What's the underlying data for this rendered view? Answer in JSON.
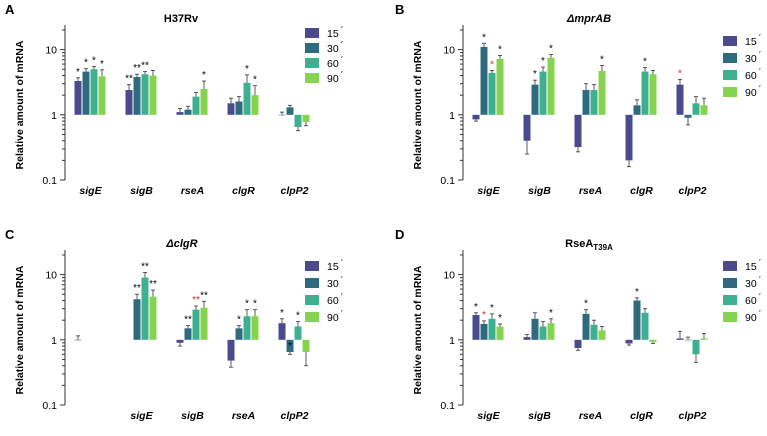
{
  "colors": {
    "15": "#4a4a8c",
    "30": "#2e6b7f",
    "60": "#3fb08f",
    "90": "#86d34f",
    "axis": "#333333",
    "red_star": "#d62728"
  },
  "chart_data": [
    {
      "type": "bar",
      "panel": "A",
      "title": "H37Rv",
      "ylabel": "Relative amount of mRNA",
      "yscale": "log",
      "ylim": [
        0.1,
        20
      ],
      "yticks": [
        "10",
        "1",
        "0.1"
      ],
      "categories": [
        "sigE",
        "sigB",
        "rseA",
        "clgR",
        "clpP2"
      ],
      "legend": [
        "15",
        "30",
        "60",
        "90"
      ],
      "series": [
        {
          "name": "15",
          "values": [
            3.3,
            2.4,
            1.1,
            1.5,
            1.0
          ],
          "errors": [
            0.4,
            0.5,
            0.15,
            0.3,
            0.1
          ],
          "annotations": [
            "*",
            "**",
            "",
            "",
            ""
          ]
        },
        {
          "name": "30",
          "values": [
            4.6,
            3.8,
            1.2,
            1.6,
            1.3
          ],
          "errors": [
            0.5,
            0.4,
            0.15,
            0.3,
            0.1
          ],
          "annotations": [
            "*",
            "**",
            "",
            "",
            ""
          ]
        },
        {
          "name": "60",
          "values": [
            5.0,
            4.2,
            1.9,
            3.1,
            0.65
          ],
          "errors": [
            0.5,
            0.4,
            0.3,
            1.0,
            0.08
          ],
          "annotations": [
            "*",
            "**",
            "",
            "*",
            ""
          ]
        },
        {
          "name": "90",
          "values": [
            3.9,
            4.0,
            2.5,
            2.0,
            0.78
          ],
          "errors": [
            1.0,
            0.8,
            0.8,
            0.8,
            0.1
          ],
          "annotations": [
            "*",
            "",
            "*",
            "*",
            ""
          ]
        }
      ]
    },
    {
      "type": "bar",
      "panel": "B",
      "title": "ΔmprAB",
      "ylabel": "Relative amount of mRNA",
      "yscale": "log",
      "ylim": [
        0.1,
        20
      ],
      "yticks": [
        "10",
        "1",
        "0.1"
      ],
      "categories": [
        "sigE",
        "sigB",
        "rseA",
        "clgR",
        "clpP2"
      ],
      "legend": [
        "15",
        "30",
        "60",
        "90"
      ],
      "series": [
        {
          "name": "15",
          "values": [
            0.85,
            0.4,
            0.32,
            0.2,
            2.9
          ],
          "errors": [
            0.05,
            0.15,
            0.05,
            0.04,
            0.6
          ],
          "annotations": [
            "",
            "",
            "",
            "",
            "*"
          ]
        },
        {
          "name": "30",
          "values": [
            11.0,
            2.9,
            2.4,
            1.4,
            0.9
          ],
          "errors": [
            1.5,
            0.5,
            0.6,
            0.3,
            0.2
          ],
          "annotations": [
            "*",
            "*",
            "",
            "",
            ""
          ]
        },
        {
          "name": "60",
          "values": [
            4.4,
            4.6,
            2.4,
            4.6,
            1.5
          ],
          "errors": [
            0.4,
            0.8,
            0.5,
            0.7,
            0.4
          ],
          "annotations": [
            "*",
            "*",
            "",
            "*",
            ""
          ]
        },
        {
          "name": "90",
          "values": [
            7.2,
            7.5,
            4.7,
            4.2,
            1.4
          ],
          "errors": [
            0.9,
            0.9,
            1.0,
            0.6,
            0.4
          ],
          "annotations": [
            "*",
            "*",
            "*",
            "",
            ""
          ]
        }
      ]
    },
    {
      "type": "bar",
      "panel": "C",
      "title": "ΔclgR",
      "ylabel": "Relative amount of mRNA",
      "yscale": "log",
      "ylim": [
        0.1,
        20
      ],
      "yticks": [
        "10",
        "1",
        "0.1"
      ],
      "categories": [
        "",
        "sigE",
        "sigB",
        "rseA",
        "clpP2"
      ],
      "legend": [
        "15",
        "30",
        "60",
        "90"
      ],
      "series": [
        {
          "name": "15",
          "values": [
            1.0,
            null,
            0.9,
            0.48,
            1.8
          ],
          "errors": [
            0.15,
            null,
            0.1,
            0.1,
            0.3
          ],
          "annotations": [
            "",
            "",
            "",
            "",
            "*"
          ]
        },
        {
          "name": "30",
          "values": [
            null,
            4.2,
            1.5,
            1.5,
            0.65
          ],
          "errors": [
            null,
            0.8,
            0.15,
            0.15,
            0.05
          ],
          "annotations": [
            "",
            "**",
            "**",
            "*",
            "*"
          ]
        },
        {
          "name": "60",
          "values": [
            null,
            9.0,
            2.9,
            2.3,
            1.6
          ],
          "errors": [
            null,
            1.8,
            0.4,
            0.6,
            0.3
          ],
          "annotations": [
            "",
            "**",
            "**",
            "*",
            "*"
          ]
        },
        {
          "name": "90",
          "values": [
            null,
            4.6,
            3.1,
            2.3,
            0.65
          ],
          "errors": [
            null,
            1.2,
            0.8,
            0.6,
            0.25
          ],
          "annotations": [
            "",
            "**",
            "**",
            "*",
            ""
          ]
        }
      ]
    },
    {
      "type": "bar",
      "panel": "D",
      "title": "RseA",
      "title_subscript": "T39A",
      "ylabel": "Relative amount of mRNA",
      "yscale": "log",
      "ylim": [
        0.1,
        20
      ],
      "yticks": [
        "10",
        "1",
        "0.1"
      ],
      "categories": [
        "sigE",
        "sigB",
        "rseA",
        "clgR",
        "clpP2"
      ],
      "legend": [
        "15",
        "30",
        "60",
        "90"
      ],
      "series": [
        {
          "name": "15",
          "values": [
            2.4,
            1.1,
            0.75,
            0.88,
            1.05
          ],
          "errors": [
            0.2,
            0.1,
            0.06,
            0.05,
            0.3
          ],
          "annotations": [
            "*",
            "",
            "",
            "",
            ""
          ]
        },
        {
          "name": "30",
          "values": [
            1.75,
            2.1,
            2.5,
            4.0,
            1.0
          ],
          "errors": [
            0.2,
            0.5,
            0.4,
            0.4,
            0.1
          ],
          "annotations": [
            "*",
            "",
            "*",
            "*",
            ""
          ]
        },
        {
          "name": "60",
          "values": [
            2.1,
            1.6,
            1.7,
            2.6,
            0.6
          ],
          "errors": [
            0.4,
            0.3,
            0.3,
            0.4,
            0.15
          ],
          "annotations": [
            "*",
            "",
            "",
            "",
            ""
          ]
        },
        {
          "name": "90",
          "values": [
            1.6,
            1.8,
            1.4,
            0.93,
            1.05
          ],
          "errors": [
            0.15,
            0.3,
            0.2,
            0.05,
            0.2
          ],
          "annotations": [
            "*",
            "*",
            "",
            "",
            ""
          ]
        }
      ]
    }
  ]
}
